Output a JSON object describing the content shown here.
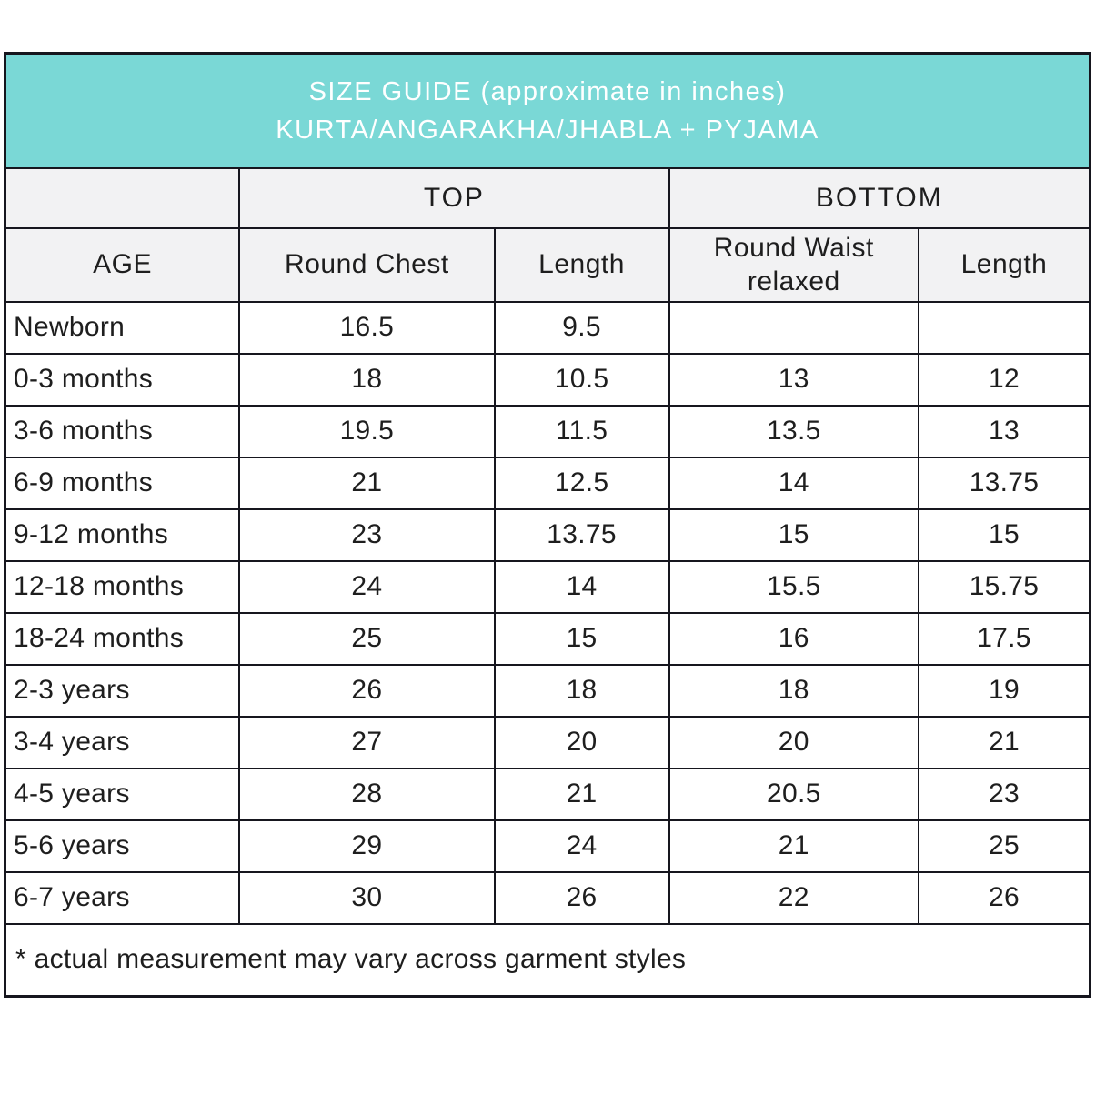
{
  "header": {
    "title_line1": "SIZE GUIDE (approximate in inches)",
    "title_line2": "KURTA/ANGARAKHA/JHABLA + PYJAMA"
  },
  "colors": {
    "teal_band": "#7ad8d6",
    "header_gray": "#f2f2f3",
    "border": "#16161e",
    "title_text": "#ffffff",
    "body_text": "#1e1e1e"
  },
  "table": {
    "group_headers": {
      "top": "TOP",
      "bottom": "BOTTOM"
    },
    "column_headers": {
      "age": "AGE",
      "round_chest": "Round Chest",
      "top_length": "Length",
      "round_waist": "Round Waist relaxed",
      "bottom_length": "Length"
    },
    "rows": [
      {
        "age": "Newborn",
        "round_chest": "16.5",
        "top_length": "9.5",
        "round_waist": "",
        "bottom_length": ""
      },
      {
        "age": "0-3 months",
        "round_chest": "18",
        "top_length": "10.5",
        "round_waist": "13",
        "bottom_length": "12"
      },
      {
        "age": "3-6 months",
        "round_chest": "19.5",
        "top_length": "11.5",
        "round_waist": "13.5",
        "bottom_length": "13"
      },
      {
        "age": "6-9 months",
        "round_chest": "21",
        "top_length": "12.5",
        "round_waist": "14",
        "bottom_length": "13.75"
      },
      {
        "age": "9-12 months",
        "round_chest": "23",
        "top_length": "13.75",
        "round_waist": "15",
        "bottom_length": "15"
      },
      {
        "age": "12-18 months",
        "round_chest": "24",
        "top_length": "14",
        "round_waist": "15.5",
        "bottom_length": "15.75"
      },
      {
        "age": "18-24 months",
        "round_chest": "25",
        "top_length": "15",
        "round_waist": "16",
        "bottom_length": "17.5"
      },
      {
        "age": "2-3 years",
        "round_chest": "26",
        "top_length": "18",
        "round_waist": "18",
        "bottom_length": "19"
      },
      {
        "age": "3-4 years",
        "round_chest": "27",
        "top_length": "20",
        "round_waist": "20",
        "bottom_length": "21"
      },
      {
        "age": "4-5 years",
        "round_chest": "28",
        "top_length": "21",
        "round_waist": "20.5",
        "bottom_length": "23"
      },
      {
        "age": "5-6 years",
        "round_chest": "29",
        "top_length": "24",
        "round_waist": "21",
        "bottom_length": "25"
      },
      {
        "age": "6-7 years",
        "round_chest": "30",
        "top_length": "26",
        "round_waist": "22",
        "bottom_length": "26"
      }
    ],
    "footnote": "* actual measurement may vary across garment styles"
  }
}
